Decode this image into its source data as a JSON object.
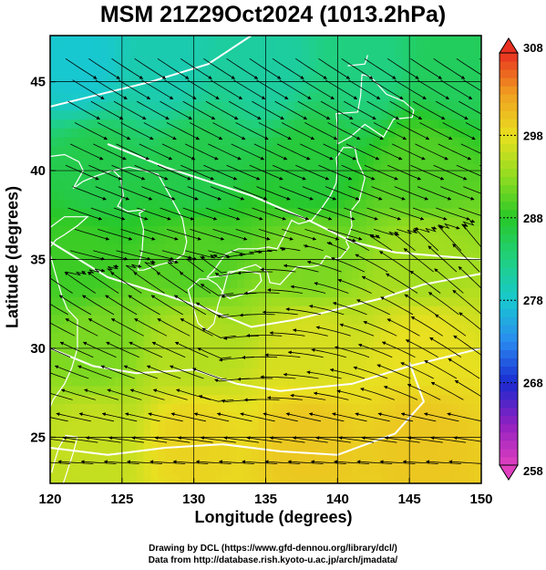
{
  "title": "MSM 21Z29Oct2024 (1013.2hPa)",
  "xlabel": "Longitude (degrees)",
  "ylabel": "Latitude  (degrees)",
  "credits": [
    "Drawing by DCL (https://www.gfd-dennou.org/library/dcl/)",
    "Data from http://database.rish.kyoto-u.ac.jp/arch/jmadata/"
  ],
  "chart_data": {
    "type": "heatmap",
    "title": "MSM 21Z29Oct2024 (1013.2hPa)",
    "xlabel": "Longitude (degrees)",
    "ylabel": "Latitude  (degrees)",
    "xlim": [
      120,
      150
    ],
    "ylim": [
      22.4,
      47.6
    ],
    "x_ticks": [
      120,
      125,
      130,
      135,
      140,
      145,
      150
    ],
    "y_ticks": [
      25,
      30,
      35,
      40,
      45
    ],
    "grid": true,
    "colorbar": {
      "min": 258,
      "max": 308,
      "ticks": [
        258,
        268,
        278,
        288,
        298,
        308
      ],
      "stops": [
        {
          "v": 258,
          "c": "#e040c0"
        },
        {
          "v": 263,
          "c": "#9020c0"
        },
        {
          "v": 268,
          "c": "#1a2ad0"
        },
        {
          "v": 273,
          "c": "#2a8af0"
        },
        {
          "v": 278,
          "c": "#18c8d0"
        },
        {
          "v": 283,
          "c": "#20d080"
        },
        {
          "v": 288,
          "c": "#28c828"
        },
        {
          "v": 293,
          "c": "#90dc20"
        },
        {
          "v": 298,
          "c": "#e8e020"
        },
        {
          "v": 303,
          "c": "#f0a020"
        },
        {
          "v": 308,
          "c": "#e83020"
        }
      ]
    },
    "field_samples": [
      {
        "lon": 122,
        "lat": 46,
        "v": 278
      },
      {
        "lon": 128,
        "lat": 46,
        "v": 280
      },
      {
        "lon": 135,
        "lat": 46,
        "v": 281
      },
      {
        "lon": 142,
        "lat": 46,
        "v": 283
      },
      {
        "lon": 148,
        "lat": 46,
        "v": 285
      },
      {
        "lon": 123,
        "lat": 40,
        "v": 286
      },
      {
        "lon": 130,
        "lat": 40,
        "v": 286
      },
      {
        "lon": 138,
        "lat": 40,
        "v": 287
      },
      {
        "lon": 146,
        "lat": 40,
        "v": 290
      },
      {
        "lon": 122,
        "lat": 35,
        "v": 289
      },
      {
        "lon": 130,
        "lat": 35,
        "v": 290
      },
      {
        "lon": 138,
        "lat": 35,
        "v": 292
      },
      {
        "lon": 146,
        "lat": 35,
        "v": 294
      },
      {
        "lon": 123,
        "lat": 30,
        "v": 292
      },
      {
        "lon": 130,
        "lat": 30,
        "v": 295
      },
      {
        "lon": 138,
        "lat": 30,
        "v": 297
      },
      {
        "lon": 146,
        "lat": 30,
        "v": 298
      },
      {
        "lon": 123,
        "lat": 25,
        "v": 296
      },
      {
        "lon": 130,
        "lat": 25,
        "v": 299
      },
      {
        "lon": 138,
        "lat": 25,
        "v": 300
      },
      {
        "lon": 146,
        "lat": 25,
        "v": 300
      }
    ],
    "flow_description": "Streamlines show northwesterly winds over Sea of Japan and easterly/northeasterly winds over the ocean south of Japan",
    "land_outline": "Japan, Korea, eastern China coastlines"
  }
}
